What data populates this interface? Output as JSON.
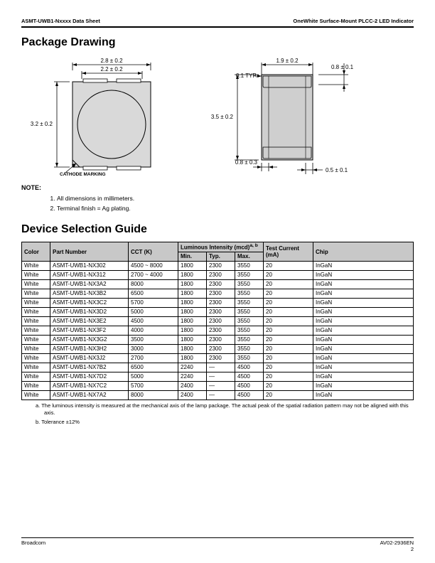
{
  "header": {
    "left": "ASMT-UWB1-Nxxxx Data Sheet",
    "right": "OneWhite Surface-Mount PLCC-2 LED Indicator"
  },
  "sections": {
    "package_drawing": "Package Drawing",
    "device_selection": "Device Selection Guide"
  },
  "drawing": {
    "dim_top_outer": "2.8 ± 0.2",
    "dim_top_inner": "2.2 ± 0.2",
    "dim_left_height": "3.2 ± 0.2",
    "cathode_label": "CATHODE MARKING",
    "dim_side_height": "3.5 ± 0.2",
    "dim_typ": "0.1 TYP.",
    "dim_side_top": "1.9 ± 0.2",
    "dim_side_right": "0.8 ± 0.1",
    "dim_side_bot_inner": "0.8 ± 0.3",
    "dim_side_bot_right": "0.5 ± 0.1",
    "colors": {
      "stroke": "#000000",
      "fill_top": "#d9d9d9",
      "fill_side": "#cfcfcf"
    }
  },
  "notes": {
    "header": "NOTE:",
    "items": [
      "All dimensions in millimeters.",
      "Terminal finish = Ag plating."
    ]
  },
  "table": {
    "headers": {
      "color": "Color",
      "part": "Part Number",
      "cct": "CCT (K)",
      "lum_group": "Luminous Intensity (mcd)",
      "lum_sup": "a, b",
      "min": "Min.",
      "typ": "Typ.",
      "max": "Max.",
      "test": "Test Current (mA)",
      "chip": "Chip"
    },
    "rows": [
      {
        "color": "White",
        "part": "ASMT-UWB1-NX302",
        "cct": "4500 ~ 8000",
        "min": "1800",
        "typ": "2300",
        "max": "3550",
        "test": "20",
        "chip": "InGaN"
      },
      {
        "color": "White",
        "part": "ASMT-UWB1-NX312",
        "cct": "2700 ~ 4000",
        "min": "1800",
        "typ": "2300",
        "max": "3550",
        "test": "20",
        "chip": "InGaN"
      },
      {
        "color": "White",
        "part": "ASMT-UWB1-NX3A2",
        "cct": "8000",
        "min": "1800",
        "typ": "2300",
        "max": "3550",
        "test": "20",
        "chip": "InGaN"
      },
      {
        "color": "White",
        "part": "ASMT-UWB1-NX3B2",
        "cct": "6500",
        "min": "1800",
        "typ": "2300",
        "max": "3550",
        "test": "20",
        "chip": "InGaN"
      },
      {
        "color": "White",
        "part": "ASMT-UWB1-NX3C2",
        "cct": "5700",
        "min": "1800",
        "typ": "2300",
        "max": "3550",
        "test": "20",
        "chip": "InGaN"
      },
      {
        "color": "White",
        "part": "ASMT-UWB1-NX3D2",
        "cct": "5000",
        "min": "1800",
        "typ": "2300",
        "max": "3550",
        "test": "20",
        "chip": "InGaN"
      },
      {
        "color": "White",
        "part": "ASMT-UWB1-NX3E2",
        "cct": "4500",
        "min": "1800",
        "typ": "2300",
        "max": "3550",
        "test": "20",
        "chip": "InGaN"
      },
      {
        "color": "White",
        "part": "ASMT-UWB1-NX3F2",
        "cct": "4000",
        "min": "1800",
        "typ": "2300",
        "max": "3550",
        "test": "20",
        "chip": "InGaN"
      },
      {
        "color": "White",
        "part": "ASMT-UWB1-NX3G2",
        "cct": "3500",
        "min": "1800",
        "typ": "2300",
        "max": "3550",
        "test": "20",
        "chip": "InGaN"
      },
      {
        "color": "White",
        "part": "ASMT-UWB1-NX3H2",
        "cct": "3000",
        "min": "1800",
        "typ": "2300",
        "max": "3550",
        "test": "20",
        "chip": "InGaN"
      },
      {
        "color": "White",
        "part": "ASMT-UWB1-NX3J2",
        "cct": "2700",
        "min": "1800",
        "typ": "2300",
        "max": "3550",
        "test": "20",
        "chip": "InGaN"
      },
      {
        "color": "White",
        "part": "ASMT-UWB1-NX7B2",
        "cct": "6500",
        "min": "2240",
        "typ": "—",
        "max": "4500",
        "test": "20",
        "chip": "InGaN"
      },
      {
        "color": "White",
        "part": "ASMT-UWB1-NX7D2",
        "cct": "5000",
        "min": "2240",
        "typ": "—",
        "max": "4500",
        "test": "20",
        "chip": "InGaN"
      },
      {
        "color": "White",
        "part": "ASMT-UWB1-NX7C2",
        "cct": "5700",
        "min": "2400",
        "typ": "—",
        "max": "4500",
        "test": "20",
        "chip": "InGaN"
      },
      {
        "color": "White",
        "part": "ASMT-UWB1-NX7A2",
        "cct": "8000",
        "min": "2400",
        "typ": "—",
        "max": "4500",
        "test": "20",
        "chip": "InGaN"
      }
    ],
    "col_widths": [
      "40px",
      "110px",
      "70px",
      "40px",
      "40px",
      "40px",
      "70px",
      "auto"
    ]
  },
  "footnotes": {
    "a": "a.   The luminous intensity is measured at the mechanical axis of the lamp package. The actual peak of the spatial radiation pattern may not be aligned with this axis.",
    "b": "b.   Tolerance ±12%"
  },
  "footer": {
    "left": "Broadcom",
    "right_top": "AV02-2936EN",
    "right_bot": "2"
  }
}
